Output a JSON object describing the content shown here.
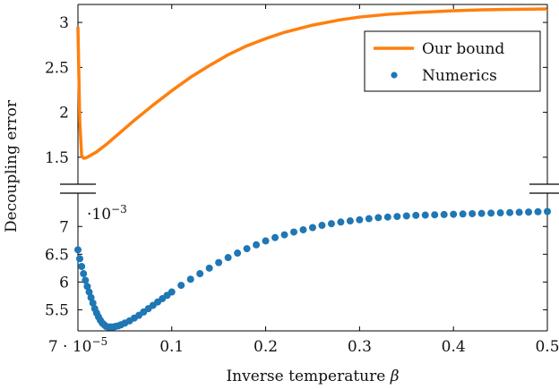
{
  "chart_data": {
    "type": "line",
    "xlabel": "Inverse temperature",
    "xlabel_symbol": "β",
    "ylabel": "Decoupling error",
    "x_range": [
      7e-05,
      0.5
    ],
    "x_ticks": [
      {
        "value": 7e-05,
        "label_base": "7 · 10",
        "label_exp": "−5"
      },
      {
        "value": 0.1,
        "label": "0.1"
      },
      {
        "value": 0.2,
        "label": "0.2"
      },
      {
        "value": 0.3,
        "label": "0.3"
      },
      {
        "value": 0.4,
        "label": "0.4"
      },
      {
        "value": 0.5,
        "label": "0.5"
      }
    ],
    "broken_y_axis": true,
    "panels": [
      {
        "position": "top",
        "ylim": [
          1.2,
          3.2
        ],
        "y_ticks": [
          {
            "value": 1.5,
            "label": "1.5"
          },
          {
            "value": 2,
            "label": "2"
          },
          {
            "value": 2.5,
            "label": "2.5"
          },
          {
            "value": 3,
            "label": "3"
          }
        ],
        "series": [
          {
            "name": "Our bound",
            "style": "line",
            "color": "#ff7f0e",
            "x": [
              7e-05,
              0.002,
              0.004,
              0.006,
              0.008,
              0.01,
              0.02,
              0.03,
              0.04,
              0.05,
              0.06,
              0.08,
              0.1,
              0.12,
              0.14,
              0.16,
              0.18,
              0.2,
              0.22,
              0.25,
              0.28,
              0.3,
              0.33,
              0.36,
              0.4,
              0.43,
              0.46,
              0.5
            ],
            "y": [
              2.95,
              1.9,
              1.52,
              1.49,
              1.49,
              1.5,
              1.56,
              1.64,
              1.73,
              1.82,
              1.91,
              2.08,
              2.24,
              2.39,
              2.52,
              2.64,
              2.74,
              2.82,
              2.89,
              2.97,
              3.03,
              3.06,
              3.09,
              3.11,
              3.13,
              3.14,
              3.145,
              3.15
            ]
          }
        ]
      },
      {
        "position": "bottom",
        "ylim": [
          5.12,
          7.6
        ],
        "y_ticks": [
          {
            "value": 5.5,
            "label": "5.5"
          },
          {
            "value": 6,
            "label": "6"
          },
          {
            "value": 6.5,
            "label": "6.5"
          },
          {
            "value": 7,
            "label": "7"
          }
        ],
        "multiplier_base": "·10",
        "multiplier_exp": "−3",
        "series": [
          {
            "name": "Numerics",
            "style": "scatter",
            "color": "#1f77b4",
            "x": [
              7e-05,
              0.002,
              0.004,
              0.006,
              0.008,
              0.01,
              0.012,
              0.014,
              0.016,
              0.018,
              0.02,
              0.022,
              0.024,
              0.026,
              0.028,
              0.03,
              0.032,
              0.035,
              0.038,
              0.04,
              0.043,
              0.046,
              0.05,
              0.055,
              0.06,
              0.065,
              0.07,
              0.075,
              0.08,
              0.085,
              0.09,
              0.095,
              0.1,
              0.11,
              0.12,
              0.13,
              0.14,
              0.15,
              0.16,
              0.17,
              0.18,
              0.19,
              0.2,
              0.21,
              0.22,
              0.23,
              0.24,
              0.25,
              0.26,
              0.27,
              0.28,
              0.29,
              0.3,
              0.31,
              0.32,
              0.33,
              0.34,
              0.35,
              0.36,
              0.37,
              0.38,
              0.39,
              0.4,
              0.41,
              0.42,
              0.43,
              0.44,
              0.45,
              0.46,
              0.47,
              0.48,
              0.49,
              0.5
            ],
            "y": [
              6.58,
              6.42,
              6.28,
              6.15,
              6.03,
              5.92,
              5.82,
              5.72,
              5.62,
              5.52,
              5.44,
              5.37,
              5.31,
              5.26,
              5.23,
              5.2,
              5.19,
              5.19,
              5.19,
              5.2,
              5.21,
              5.23,
              5.26,
              5.3,
              5.35,
              5.4,
              5.46,
              5.52,
              5.58,
              5.64,
              5.7,
              5.76,
              5.82,
              5.94,
              6.05,
              6.15,
              6.25,
              6.35,
              6.44,
              6.52,
              6.6,
              6.67,
              6.74,
              6.8,
              6.85,
              6.9,
              6.94,
              6.98,
              7.02,
              7.05,
              7.08,
              7.1,
              7.12,
              7.14,
              7.16,
              7.17,
              7.18,
              7.19,
              7.2,
              7.205,
              7.21,
              7.215,
              7.22,
              7.225,
              7.23,
              7.235,
              7.24,
              7.245,
              7.25,
              7.255,
              7.26,
              7.265,
              7.27
            ]
          }
        ]
      }
    ],
    "legend": {
      "placement": "top-right",
      "entries": [
        {
          "label": "Our bound",
          "marker": "line",
          "color": "#ff7f0e"
        },
        {
          "label": "Numerics",
          "marker": "dot",
          "color": "#1f77b4"
        }
      ]
    },
    "grid": false
  }
}
